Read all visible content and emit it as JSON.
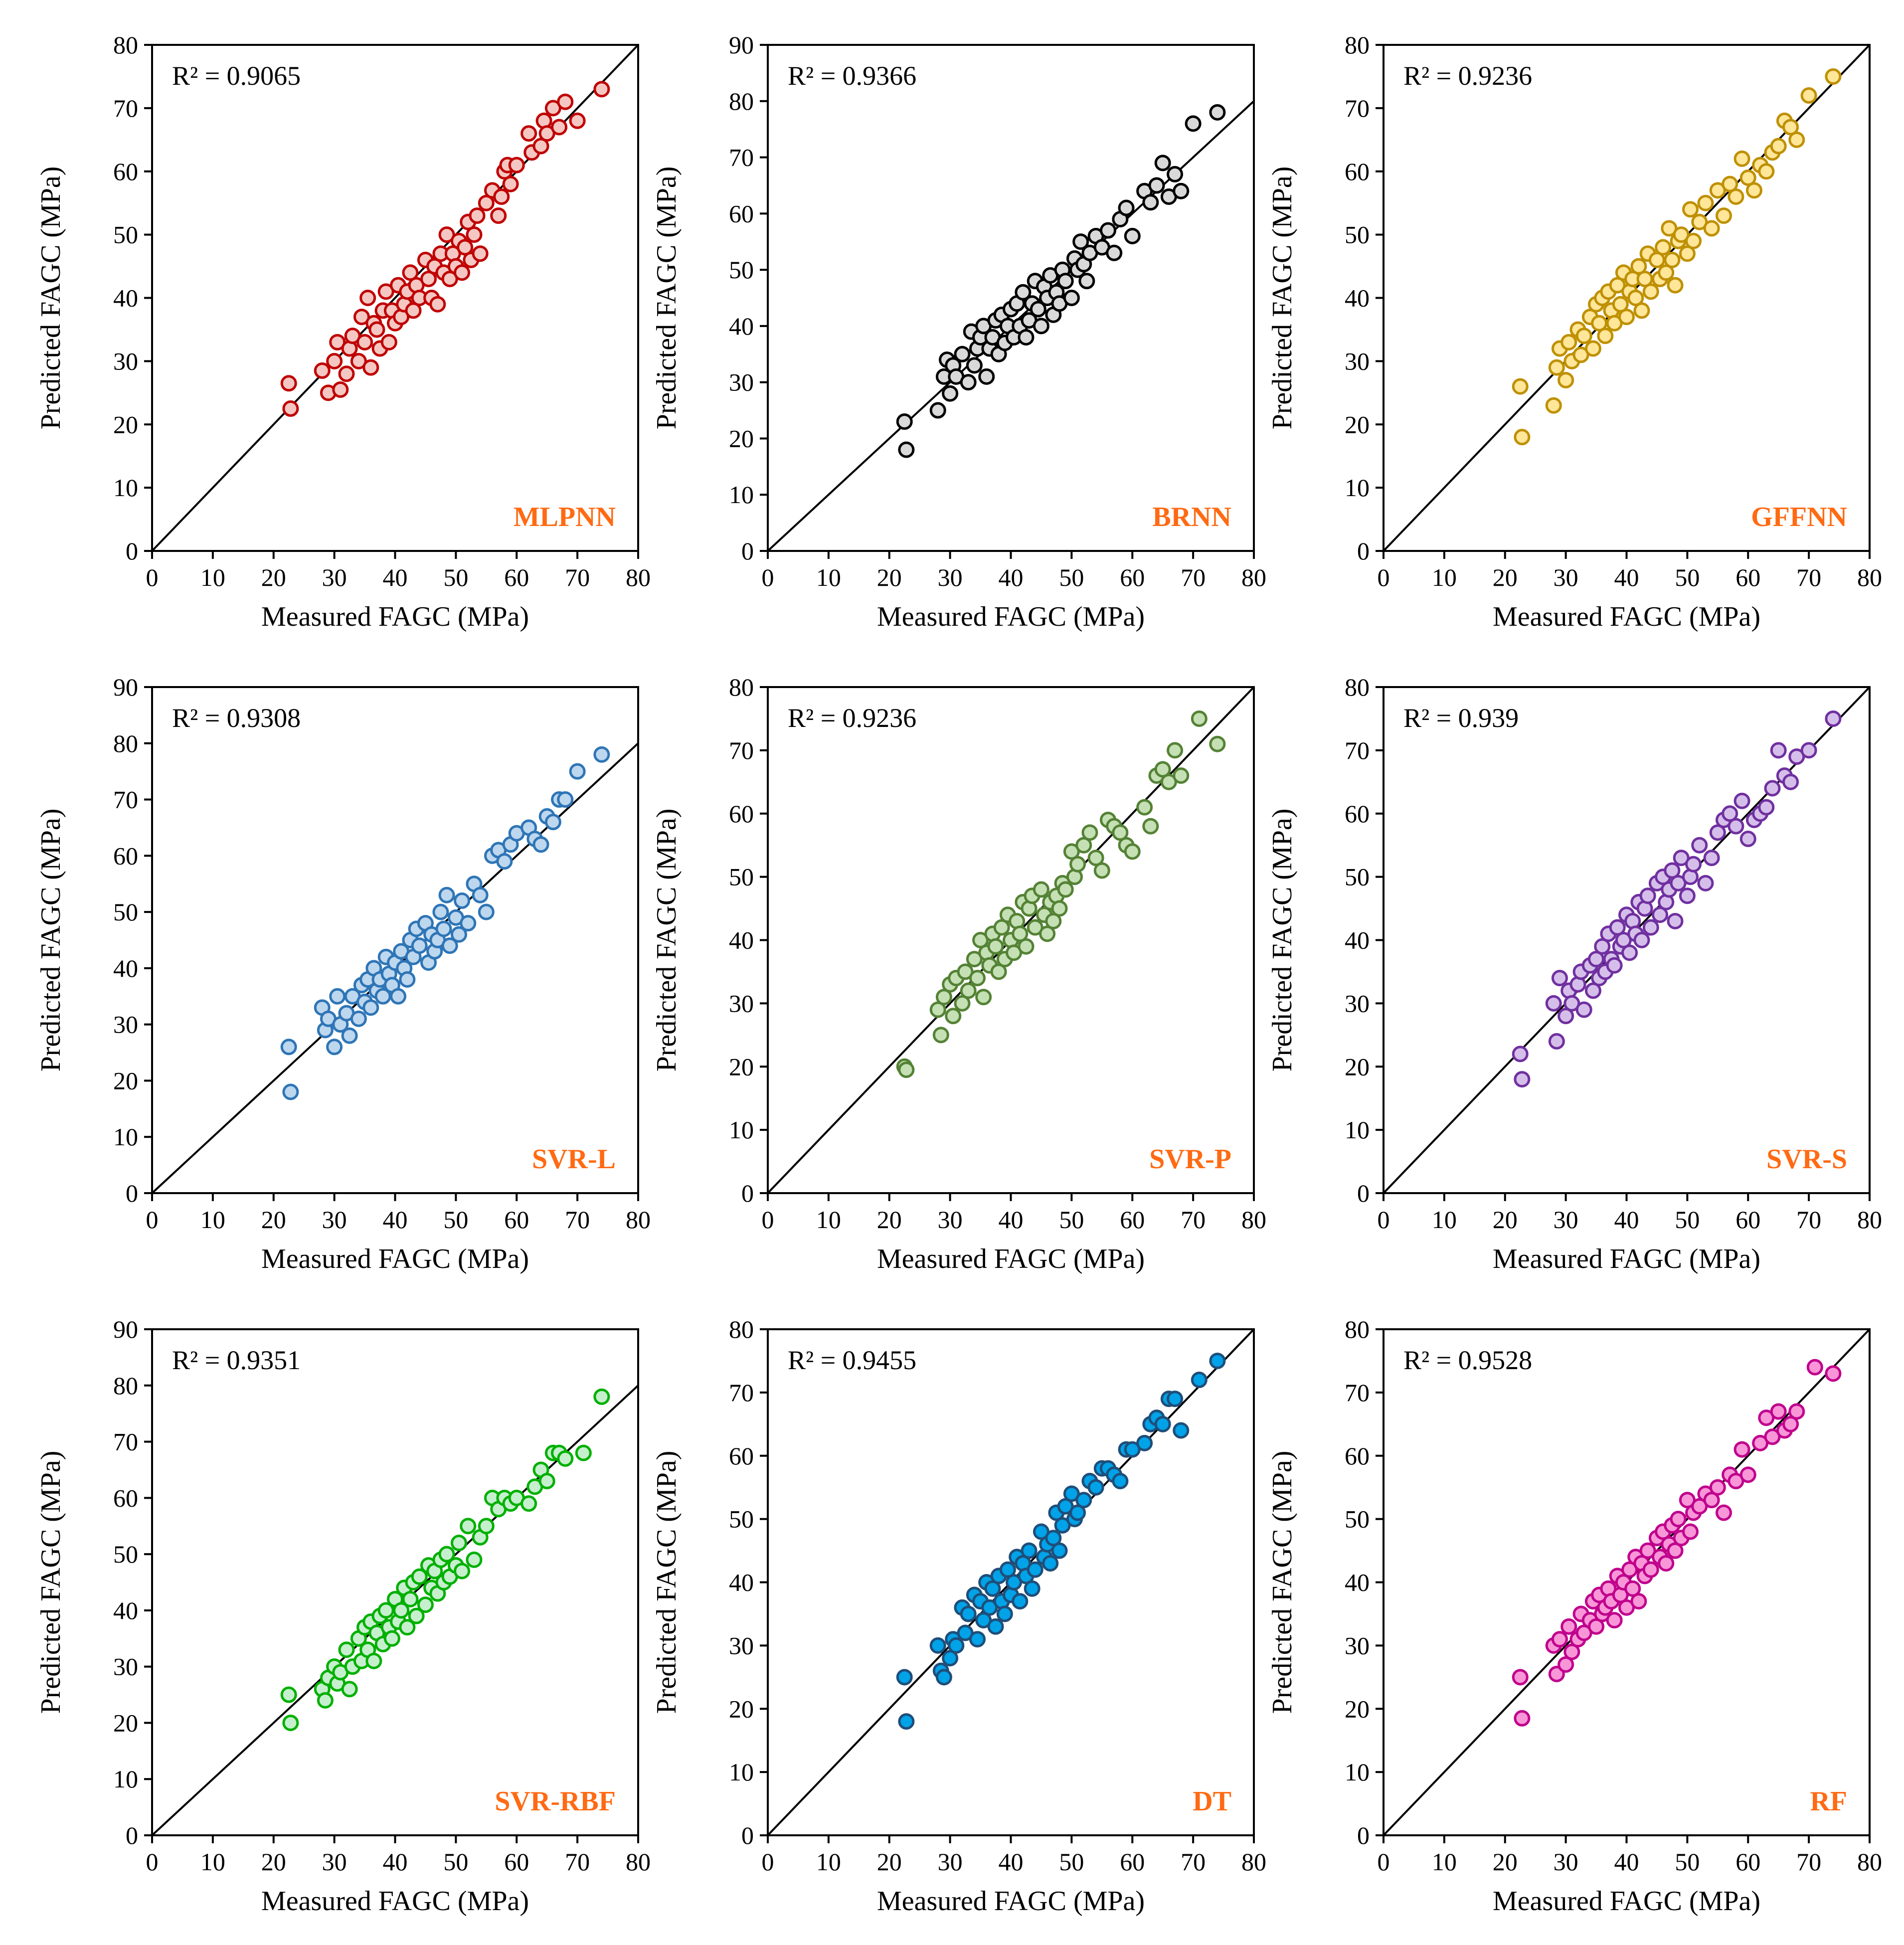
{
  "figure": {
    "xlabel": "Measured FAGC (MPa)",
    "ylabel": "Predicted FAGC (MPa)",
    "model_label_color": "#FF6A13"
  },
  "chart_data": [
    {
      "type": "scatter",
      "model": "MLPNN",
      "r2_text": "R² = 0.9065",
      "color": "#C00000",
      "fill": "#F4C7C3",
      "xlim": [
        0,
        80
      ],
      "ylim": [
        0,
        80
      ],
      "xticks": [
        0,
        10,
        20,
        30,
        40,
        50,
        60,
        70,
        80
      ],
      "yticks": [
        0,
        10,
        20,
        30,
        40,
        50,
        60,
        70,
        80
      ],
      "x": [
        22.5,
        22.8,
        28,
        29,
        30,
        30.5,
        31,
        32,
        32.5,
        33,
        34,
        34.5,
        35,
        35.5,
        36,
        36.5,
        37,
        37.5,
        38,
        38.5,
        39,
        39.5,
        40,
        40.5,
        41,
        41.5,
        42,
        42.5,
        43,
        43.5,
        44,
        45,
        45.5,
        46,
        46.5,
        47,
        47.5,
        48,
        48.5,
        49,
        49.5,
        50,
        50.5,
        51,
        51.5,
        52,
        52.5,
        53,
        53.5,
        54,
        55,
        56,
        57,
        57.5,
        58,
        58.5,
        59,
        60,
        62,
        62.5,
        64,
        64.5,
        65,
        66,
        67,
        68,
        70,
        74
      ],
      "y": [
        26.5,
        22.5,
        28.5,
        25,
        30,
        33,
        25.5,
        28,
        32,
        34,
        30,
        37,
        33,
        40,
        29,
        36,
        35,
        32,
        38,
        41,
        33,
        38,
        36,
        42,
        37,
        39,
        41,
        44,
        38,
        42,
        40,
        46,
        43,
        40,
        45,
        39,
        47,
        44,
        50,
        43,
        47,
        45,
        49,
        44,
        48,
        52,
        46,
        50,
        53,
        47,
        55,
        57,
        53,
        56,
        60,
        61,
        58,
        61,
        66,
        63,
        64,
        68,
        66,
        70,
        67,
        71,
        68,
        73
      ]
    },
    {
      "type": "scatter",
      "model": "BRNN",
      "r2_text": "R² = 0.9366",
      "color": "#000000",
      "fill": "#D9D9D9",
      "xlim": [
        0,
        80
      ],
      "ylim": [
        0,
        90
      ],
      "xticks": [
        0,
        10,
        20,
        30,
        40,
        50,
        60,
        70,
        80
      ],
      "yticks": [
        0,
        10,
        20,
        30,
        40,
        50,
        60,
        70,
        80,
        90
      ],
      "x": [
        22.5,
        22.8,
        28,
        29,
        29.5,
        30,
        30.5,
        31,
        32,
        33,
        33.5,
        34,
        34.5,
        35,
        35.5,
        36,
        36.5,
        37,
        37.5,
        38,
        38.5,
        39,
        39.5,
        40,
        40.5,
        41,
        41.5,
        42,
        42.5,
        43,
        43.5,
        44,
        44.5,
        45,
        45.5,
        46,
        46.5,
        47,
        47.5,
        48,
        48.5,
        49,
        50,
        50.5,
        51,
        51.5,
        52,
        52.5,
        53,
        54,
        55,
        56,
        57,
        58,
        59,
        60,
        62,
        63,
        64,
        65,
        66,
        67,
        68,
        70,
        74
      ],
      "y": [
        23,
        18,
        25,
        31,
        34,
        28,
        33,
        31,
        35,
        30,
        39,
        33,
        36,
        38,
        40,
        31,
        36,
        38,
        41,
        35,
        42,
        37,
        40,
        43,
        38,
        44,
        40,
        46,
        38,
        41,
        44,
        48,
        43,
        40,
        47,
        45,
        49,
        42,
        46,
        44,
        50,
        48,
        45,
        52,
        50,
        55,
        51,
        48,
        53,
        56,
        54,
        57,
        53,
        59,
        61,
        56,
        64,
        62,
        65,
        69,
        63,
        67,
        64,
        76,
        78
      ]
    },
    {
      "type": "scatter",
      "model": "GFFNN",
      "r2_text": "R² = 0.9236",
      "color": "#BF9000",
      "fill": "#FFE699",
      "xlim": [
        0,
        80
      ],
      "ylim": [
        0,
        80
      ],
      "xticks": [
        0,
        10,
        20,
        30,
        40,
        50,
        60,
        70,
        80
      ],
      "yticks": [
        0,
        10,
        20,
        30,
        40,
        50,
        60,
        70,
        80
      ],
      "x": [
        22.5,
        22.8,
        28,
        28.5,
        29,
        30,
        30.5,
        31,
        32,
        32.5,
        33,
        34,
        34.5,
        35,
        35.5,
        36,
        36.5,
        37,
        37.5,
        38,
        38.5,
        39,
        39.5,
        40,
        40.5,
        41,
        41.5,
        42,
        42.5,
        43,
        43.5,
        44,
        45,
        45.5,
        46,
        46.5,
        47,
        47.5,
        48,
        48.5,
        49,
        50,
        50.5,
        51,
        52,
        53,
        54,
        55,
        56,
        57,
        58,
        59,
        60,
        61,
        62,
        63,
        64,
        65,
        66,
        67,
        68,
        70,
        74
      ],
      "y": [
        26,
        18,
        23,
        29,
        32,
        27,
        33,
        30,
        35,
        31,
        34,
        37,
        32,
        39,
        36,
        40,
        34,
        41,
        38,
        36,
        42,
        39,
        44,
        37,
        41,
        43,
        40,
        45,
        38,
        43,
        47,
        41,
        46,
        43,
        48,
        44,
        51,
        46,
        42,
        49,
        50,
        47,
        54,
        49,
        52,
        55,
        51,
        57,
        53,
        58,
        56,
        62,
        59,
        57,
        61,
        60,
        63,
        64,
        68,
        67,
        65,
        72,
        75
      ]
    },
    {
      "type": "scatter",
      "model": "SVR-L",
      "r2_text": "R² = 0.9308",
      "color": "#2E75B6",
      "fill": "#BDD7EE",
      "xlim": [
        0,
        80
      ],
      "ylim": [
        0,
        90
      ],
      "xticks": [
        0,
        10,
        20,
        30,
        40,
        50,
        60,
        70,
        80
      ],
      "yticks": [
        0,
        10,
        20,
        30,
        40,
        50,
        60,
        70,
        80,
        90
      ],
      "x": [
        22.5,
        22.8,
        28,
        28.5,
        29,
        30,
        30.5,
        31,
        32,
        32.5,
        33,
        34,
        34.5,
        35,
        35.5,
        36,
        36.5,
        37,
        37.5,
        38,
        38.5,
        39,
        39.5,
        40,
        40.5,
        41,
        41.5,
        42,
        42.5,
        43,
        43.5,
        44,
        45,
        45.5,
        46,
        46.5,
        47,
        47.5,
        48,
        48.5,
        49,
        50,
        50.5,
        51,
        52,
        53,
        54,
        55,
        56,
        57,
        58,
        59,
        60,
        62,
        63,
        64,
        65,
        66,
        67,
        68,
        70,
        74
      ],
      "y": [
        26,
        18,
        33,
        29,
        31,
        26,
        35,
        30,
        32,
        28,
        35,
        31,
        37,
        34,
        38,
        33,
        40,
        36,
        38,
        35,
        42,
        39,
        37,
        41,
        35,
        43,
        40,
        38,
        45,
        42,
        47,
        44,
        48,
        41,
        46,
        43,
        45,
        50,
        47,
        53,
        44,
        49,
        46,
        52,
        48,
        55,
        53,
        50,
        60,
        61,
        59,
        62,
        64,
        65,
        63,
        62,
        67,
        66,
        70,
        70,
        75,
        78
      ]
    },
    {
      "type": "scatter",
      "model": "SVR-P",
      "r2_text": "R² = 0.9236",
      "color": "#548235",
      "fill": "#C5E0B4",
      "xlim": [
        0,
        80
      ],
      "ylim": [
        0,
        80
      ],
      "xticks": [
        0,
        10,
        20,
        30,
        40,
        50,
        60,
        70,
        80
      ],
      "yticks": [
        0,
        10,
        20,
        30,
        40,
        50,
        60,
        70,
        80
      ],
      "x": [
        22.5,
        22.8,
        28,
        28.5,
        29,
        30,
        30.5,
        31,
        32,
        32.5,
        33,
        34,
        34.5,
        35,
        35.5,
        36,
        36.5,
        37,
        37.5,
        38,
        38.5,
        39,
        39.5,
        40,
        40.5,
        41,
        41.5,
        42,
        42.5,
        43,
        43.5,
        44,
        45,
        45.5,
        46,
        46.5,
        47,
        47.5,
        48,
        48.5,
        49,
        50,
        50.5,
        51,
        52,
        53,
        54,
        55,
        56,
        57,
        58,
        59,
        60,
        62,
        63,
        64,
        65,
        66,
        67,
        68,
        71,
        74
      ],
      "y": [
        20,
        19.5,
        29,
        25,
        31,
        33,
        28,
        34,
        30,
        35,
        32,
        37,
        34,
        40,
        31,
        38,
        36,
        41,
        39,
        35,
        42,
        37,
        44,
        40,
        38,
        43,
        41,
        46,
        39,
        45,
        47,
        42,
        48,
        44,
        41,
        46,
        43,
        47,
        45,
        49,
        48,
        54,
        50,
        52,
        55,
        57,
        53,
        51,
        59,
        58,
        57,
        55,
        54,
        61,
        58,
        66,
        67,
        65,
        70,
        66,
        75,
        71
      ]
    },
    {
      "type": "scatter",
      "model": "SVR-S",
      "r2_text": "R² = 0.939",
      "color": "#7030A0",
      "fill": "#D5BFEA",
      "xlim": [
        0,
        80
      ],
      "ylim": [
        0,
        80
      ],
      "xticks": [
        0,
        10,
        20,
        30,
        40,
        50,
        60,
        70,
        80
      ],
      "yticks": [
        0,
        10,
        20,
        30,
        40,
        50,
        60,
        70,
        80
      ],
      "x": [
        22.5,
        22.8,
        28,
        28.5,
        29,
        30,
        30.5,
        31,
        32,
        32.5,
        33,
        34,
        34.5,
        35,
        35.5,
        36,
        36.5,
        37,
        37.5,
        38,
        38.5,
        39,
        39.5,
        40,
        40.5,
        41,
        41.5,
        42,
        42.5,
        43,
        43.5,
        44,
        45,
        45.5,
        46,
        46.5,
        47,
        47.5,
        48,
        48.5,
        49,
        50,
        50.5,
        51,
        52,
        53,
        54,
        55,
        56,
        57,
        58,
        59,
        60,
        61,
        62,
        63,
        64,
        65,
        66,
        67,
        68,
        70,
        74
      ],
      "y": [
        22,
        18,
        30,
        24,
        34,
        28,
        32,
        30,
        33,
        35,
        29,
        36,
        32,
        37,
        34,
        39,
        35,
        41,
        37,
        36,
        42,
        39,
        40,
        44,
        38,
        43,
        41,
        46,
        40,
        45,
        47,
        42,
        49,
        44,
        50,
        46,
        48,
        51,
        43,
        49,
        53,
        47,
        50,
        52,
        55,
        49,
        53,
        57,
        59,
        60,
        58,
        62,
        56,
        59,
        60,
        61,
        64,
        70,
        66,
        65,
        69,
        70,
        75
      ]
    },
    {
      "type": "scatter",
      "model": "SVR-RBF",
      "r2_text": "R² = 0.9351",
      "color": "#00B000",
      "fill": "#C6EFCE",
      "xlim": [
        0,
        80
      ],
      "ylim": [
        0,
        90
      ],
      "xticks": [
        0,
        10,
        20,
        30,
        40,
        50,
        60,
        70,
        80
      ],
      "yticks": [
        0,
        10,
        20,
        30,
        40,
        50,
        60,
        70,
        80,
        90
      ],
      "x": [
        22.5,
        22.8,
        28,
        28.5,
        29,
        30,
        30.5,
        31,
        32,
        32.5,
        33,
        34,
        34.5,
        35,
        35.5,
        36,
        36.5,
        37,
        37.5,
        38,
        38.5,
        39,
        39.5,
        40,
        40.5,
        41,
        41.5,
        42,
        42.5,
        43,
        43.5,
        44,
        45,
        45.5,
        46,
        46.5,
        47,
        47.5,
        48,
        48.5,
        49,
        50,
        50.5,
        51,
        52,
        53,
        54,
        55,
        56,
        57,
        58,
        59,
        60,
        62,
        63,
        64,
        65,
        66,
        67,
        68,
        71,
        74
      ],
      "y": [
        25,
        20,
        26,
        24,
        28,
        30,
        27,
        29,
        33,
        26,
        30,
        35,
        31,
        37,
        33,
        38,
        31,
        36,
        39,
        34,
        40,
        37,
        35,
        42,
        38,
        40,
        44,
        37,
        42,
        45,
        39,
        46,
        41,
        48,
        44,
        47,
        43,
        49,
        45,
        50,
        46,
        48,
        52,
        47,
        55,
        49,
        53,
        55,
        60,
        58,
        60,
        59,
        60,
        59,
        62,
        65,
        63,
        68,
        68,
        67,
        68,
        78
      ]
    },
    {
      "type": "scatter",
      "model": "DT",
      "r2_text": "R² = 0.9455",
      "color": "#1F4E79",
      "fill": "#00A2E8",
      "xlim": [
        0,
        80
      ],
      "ylim": [
        0,
        80
      ],
      "xticks": [
        0,
        10,
        20,
        30,
        40,
        50,
        60,
        70,
        80
      ],
      "yticks": [
        0,
        10,
        20,
        30,
        40,
        50,
        60,
        70,
        80
      ],
      "x": [
        22.5,
        22.8,
        28,
        28.5,
        29,
        30,
        30.5,
        31,
        32,
        32.5,
        33,
        34,
        34.5,
        35,
        35.5,
        36,
        36.5,
        37,
        37.5,
        38,
        38.5,
        39,
        39.5,
        40,
        40.5,
        41,
        41.5,
        42,
        42.5,
        43,
        43.5,
        44,
        45,
        45.5,
        46,
        46.5,
        47,
        47.5,
        48,
        48.5,
        49,
        50,
        50.5,
        51,
        52,
        53,
        54,
        55,
        56,
        57,
        58,
        59,
        60,
        62,
        63,
        64,
        65,
        66,
        67,
        68,
        71,
        74
      ],
      "y": [
        25,
        18,
        30,
        26,
        25,
        28,
        31,
        30,
        36,
        32,
        35,
        38,
        31,
        37,
        34,
        40,
        36,
        39,
        33,
        41,
        37,
        35,
        42,
        38,
        40,
        44,
        37,
        43,
        41,
        45,
        39,
        42,
        48,
        44,
        46,
        43,
        47,
        51,
        45,
        49,
        52,
        54,
        50,
        51,
        53,
        56,
        55,
        58,
        58,
        57,
        56,
        61,
        61,
        62,
        65,
        66,
        65,
        69,
        69,
        64,
        72,
        75
      ]
    },
    {
      "type": "scatter",
      "model": "RF",
      "r2_text": "R² = 0.9528",
      "color": "#C0008C",
      "fill": "#F896D8",
      "xlim": [
        0,
        80
      ],
      "ylim": [
        0,
        80
      ],
      "xticks": [
        0,
        10,
        20,
        30,
        40,
        50,
        60,
        70,
        80
      ],
      "yticks": [
        0,
        10,
        20,
        30,
        40,
        50,
        60,
        70,
        80
      ],
      "x": [
        22.5,
        22.8,
        28,
        28.5,
        29,
        30,
        30.5,
        31,
        32,
        32.5,
        33,
        34,
        34.5,
        35,
        35.5,
        36,
        36.5,
        37,
        37.5,
        38,
        38.5,
        39,
        39.5,
        40,
        40.5,
        41,
        41.5,
        42,
        42.5,
        43,
        43.5,
        44,
        45,
        45.5,
        46,
        46.5,
        47,
        47.5,
        48,
        48.5,
        49,
        50,
        50.5,
        51,
        52,
        53,
        54,
        55,
        56,
        57,
        58,
        59,
        60,
        62,
        63,
        64,
        65,
        66,
        67,
        68,
        71,
        74
      ],
      "y": [
        25,
        18.5,
        30,
        25.5,
        31,
        27,
        33,
        29,
        31,
        35,
        32,
        34,
        37,
        33,
        38,
        35,
        36,
        39,
        37,
        34,
        41,
        38,
        40,
        36,
        42,
        39,
        44,
        37,
        43,
        41,
        45,
        42,
        47,
        44,
        48,
        43,
        46,
        49,
        45,
        50,
        47,
        53,
        48,
        51,
        52,
        54,
        53,
        55,
        51,
        57,
        56,
        61,
        57,
        62,
        66,
        63,
        67,
        64,
        65,
        67,
        74,
        73
      ]
    }
  ]
}
